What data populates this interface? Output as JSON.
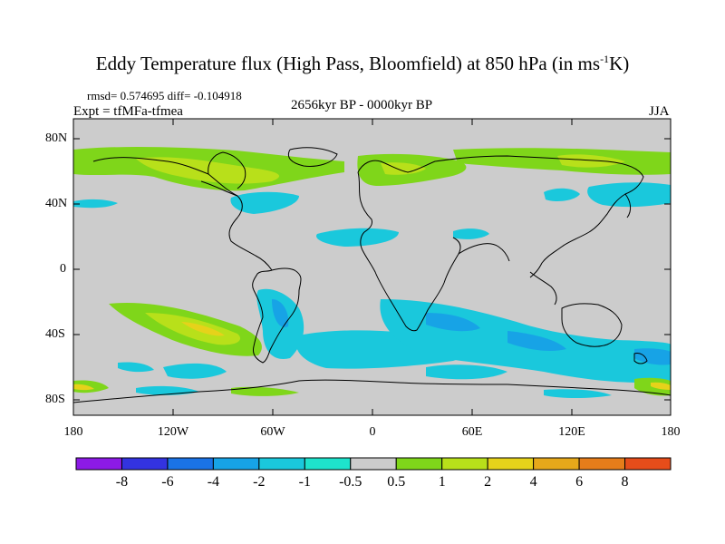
{
  "title": {
    "main": "Eddy Temperature flux (High Pass, Bloomfield) at 850 hPa (in ms",
    "sup": "-1",
    "end": "K)"
  },
  "stats": "rmsd= 0.574695 diff= -0.104918",
  "experiment": "Expt = tfMFa-tfmea",
  "period": "2656kyr BP - 0000kyr BP",
  "season": "JJA",
  "lat_labels": [
    "80N",
    "40N",
    "0",
    "40S",
    "80S"
  ],
  "lon_labels": [
    "180",
    "120W",
    "60W",
    "0",
    "60E",
    "120E",
    "180"
  ],
  "colorbar": {
    "labels": [
      "-8",
      "-6",
      "-4",
      "-2",
      "-1",
      "-0.5",
      "0.5",
      "1",
      "2",
      "4",
      "6",
      "8"
    ],
    "colors": [
      "#8c1ae6",
      "#3333e0",
      "#1a73e6",
      "#17a3e6",
      "#1ac8dc",
      "#1ee3cc",
      "#cccccc",
      "#7fd61a",
      "#b8e01a",
      "#e6d21a",
      "#e6a81a",
      "#e67d1a",
      "#e64d1a"
    ]
  },
  "palette": {
    "land_neutral": "#cccccc",
    "coast": "#000000"
  }
}
